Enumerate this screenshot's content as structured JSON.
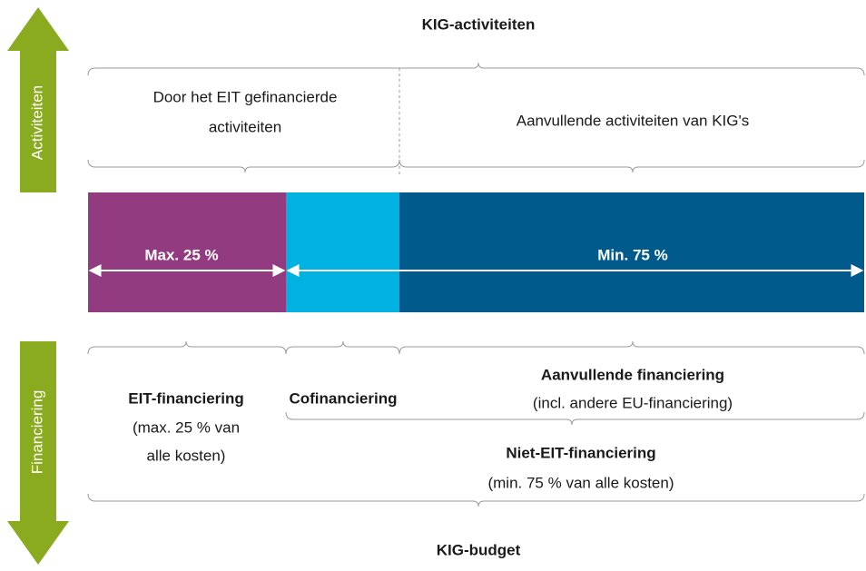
{
  "top_title": "KIG-activiteiten",
  "bottom_title": "KIG-budget",
  "side_labels": {
    "top": "Activiteiten",
    "bottom": "Financiering"
  },
  "activities": {
    "eit_funded": [
      "Door het EIT gefinancierde",
      "activiteiten"
    ],
    "complementary": "Aanvullende activiteiten van KIG's"
  },
  "bar_labels": {
    "left": "Max. 25 %",
    "right": "Min. 75 %"
  },
  "financing": {
    "eit": {
      "title": "EIT-financiering",
      "note": [
        "(max. 25 % van",
        "alle kosten)"
      ]
    },
    "co": {
      "title": "Cofinanciering"
    },
    "complementary": {
      "title": "Aanvullende financiering",
      "note": "(incl. andere EU-financiering)"
    },
    "non_eit": {
      "title": "Niet-EIT-financiering",
      "note": "(min. 75 % van alle kosten)"
    }
  }
}
